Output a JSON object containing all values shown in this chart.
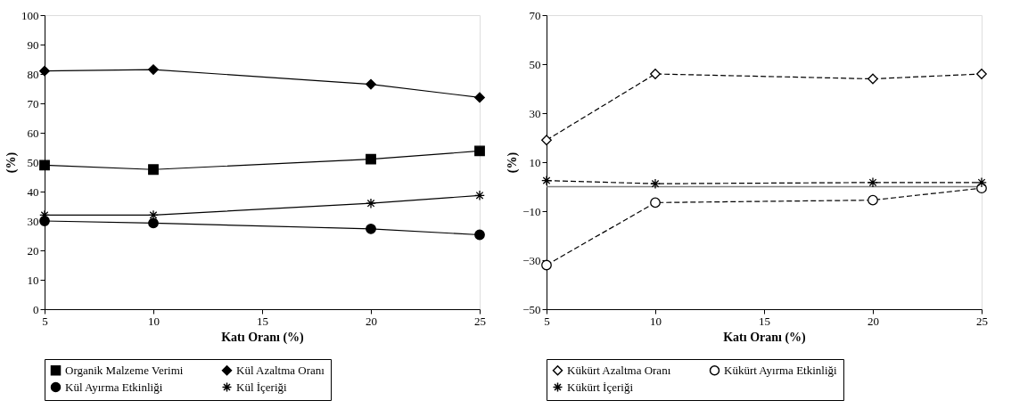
{
  "chart_data": [
    {
      "type": "line",
      "xlabel": "Katı Oranı (%)",
      "ylabel": "(%)",
      "x": [
        5,
        10,
        20,
        25
      ],
      "xlim": [
        5,
        25
      ],
      "xticks": [
        5,
        10,
        15,
        20,
        25
      ],
      "ylim": [
        0,
        100
      ],
      "yticks": [
        0,
        10,
        20,
        30,
        40,
        50,
        60,
        70,
        80,
        90,
        100
      ],
      "grid": false,
      "legend": "bottom",
      "line_style": "solid",
      "series": [
        {
          "name": "Organik Malzeme Verimi",
          "color": "#000000",
          "marker": "square",
          "values": [
            49,
            47.5,
            51,
            53.8
          ]
        },
        {
          "name": "Kül Azaltma Oranı",
          "color": "#000000",
          "marker": "diamond",
          "values": [
            81,
            81.5,
            76.5,
            72
          ]
        },
        {
          "name": "Kül Ayırma Etkinliği",
          "color": "#000000",
          "marker": "circle",
          "values": [
            30,
            29.3,
            27.3,
            25.3
          ]
        },
        {
          "name": "Kül İçeriği",
          "color": "#000000",
          "marker": "cross",
          "values": [
            32,
            32,
            36,
            38.7
          ]
        }
      ]
    },
    {
      "type": "line",
      "xlabel": "Katı Oranı (%)",
      "ylabel": "(%)",
      "x": [
        5,
        10,
        20,
        25
      ],
      "xlim": [
        5,
        25
      ],
      "xticks": [
        5,
        10,
        15,
        20,
        25
      ],
      "ylim": [
        -50,
        70
      ],
      "yticks": [
        -50,
        -30,
        -10,
        10,
        30,
        50,
        70
      ],
      "grid": false,
      "legend": "bottom",
      "line_style": "dashed",
      "ref_lines": [
        {
          "axis": "y",
          "value": 0,
          "color": "#808080"
        }
      ],
      "series": [
        {
          "name": "Kükürt Azaltma Oranı",
          "color": "#000000",
          "marker": "diamond",
          "values": [
            19,
            46,
            44,
            46
          ]
        },
        {
          "name": "Kükürt Ayırma Etkinliği",
          "color": "#000000",
          "marker": "circle",
          "values": [
            -32,
            -6.5,
            -5.5,
            -0.6
          ]
        },
        {
          "name": "Kükürt İçeriği",
          "color": "#000000",
          "marker": "cross",
          "values": [
            2.5,
            1.2,
            1.7,
            1.7
          ]
        }
      ]
    }
  ]
}
